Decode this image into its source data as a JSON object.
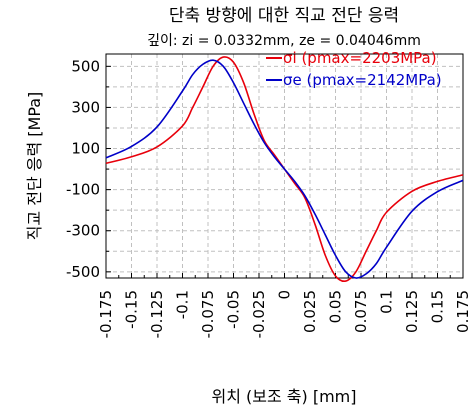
{
  "chart_data": {
    "type": "line",
    "title": "단축 방향에 대한 직교 전단 응력",
    "subtitle": "깊이: zi = 0.0332mm, ze = 0.04046mm",
    "xlabel": "위치 (보조 축) [mm]",
    "ylabel": "직교 전단 응력 [MPa]",
    "xlim": [
      -0.175,
      0.175
    ],
    "ylim": [
      -530,
      560
    ],
    "xticks": [
      "-0.175",
      "-0.15",
      "-0.125",
      "-0.1",
      "-0.075",
      "-0.05",
      "-0.025",
      "0",
      "0.025",
      "0.05",
      "0.075",
      "0.1",
      "0.125",
      "0.15",
      "0.175"
    ],
    "yticks": [
      "500",
      "300",
      "100",
      "-100",
      "-300",
      "-500"
    ],
    "grid": true,
    "legend_position": "top-right",
    "series": [
      {
        "name": "σi (pmax=2203MPa)",
        "color": "#e8000b",
        "x": [
          -0.175,
          -0.15,
          -0.125,
          -0.1,
          -0.09,
          -0.08,
          -0.07,
          -0.06,
          -0.05,
          -0.04,
          -0.03,
          -0.02,
          -0.01,
          0,
          0.01,
          0.02,
          0.03,
          0.04,
          0.05,
          0.06,
          0.07,
          0.08,
          0.09,
          0.1,
          0.125,
          0.15,
          0.175
        ],
        "y": [
          28,
          60,
          108,
          210,
          300,
          400,
          500,
          545,
          520,
          420,
          270,
          140,
          70,
          0,
          -70,
          -140,
          -270,
          -420,
          -520,
          -545,
          -500,
          -400,
          -300,
          -210,
          -108,
          -60,
          -28
        ]
      },
      {
        "name": "σe (pmax=2142MPa)",
        "color": "#0000c8",
        "x": [
          -0.175,
          -0.15,
          -0.125,
          -0.1,
          -0.09,
          -0.08,
          -0.07,
          -0.06,
          -0.05,
          -0.04,
          -0.03,
          -0.02,
          -0.01,
          0,
          0.01,
          0.02,
          0.03,
          0.04,
          0.05,
          0.06,
          0.07,
          0.08,
          0.09,
          0.1,
          0.125,
          0.15,
          0.175
        ],
        "y": [
          55,
          110,
          205,
          380,
          460,
          510,
          530,
          500,
          420,
          320,
          220,
          130,
          60,
          0,
          -60,
          -130,
          -220,
          -320,
          -420,
          -500,
          -530,
          -510,
          -460,
          -380,
          -205,
          -110,
          -55
        ]
      }
    ]
  }
}
